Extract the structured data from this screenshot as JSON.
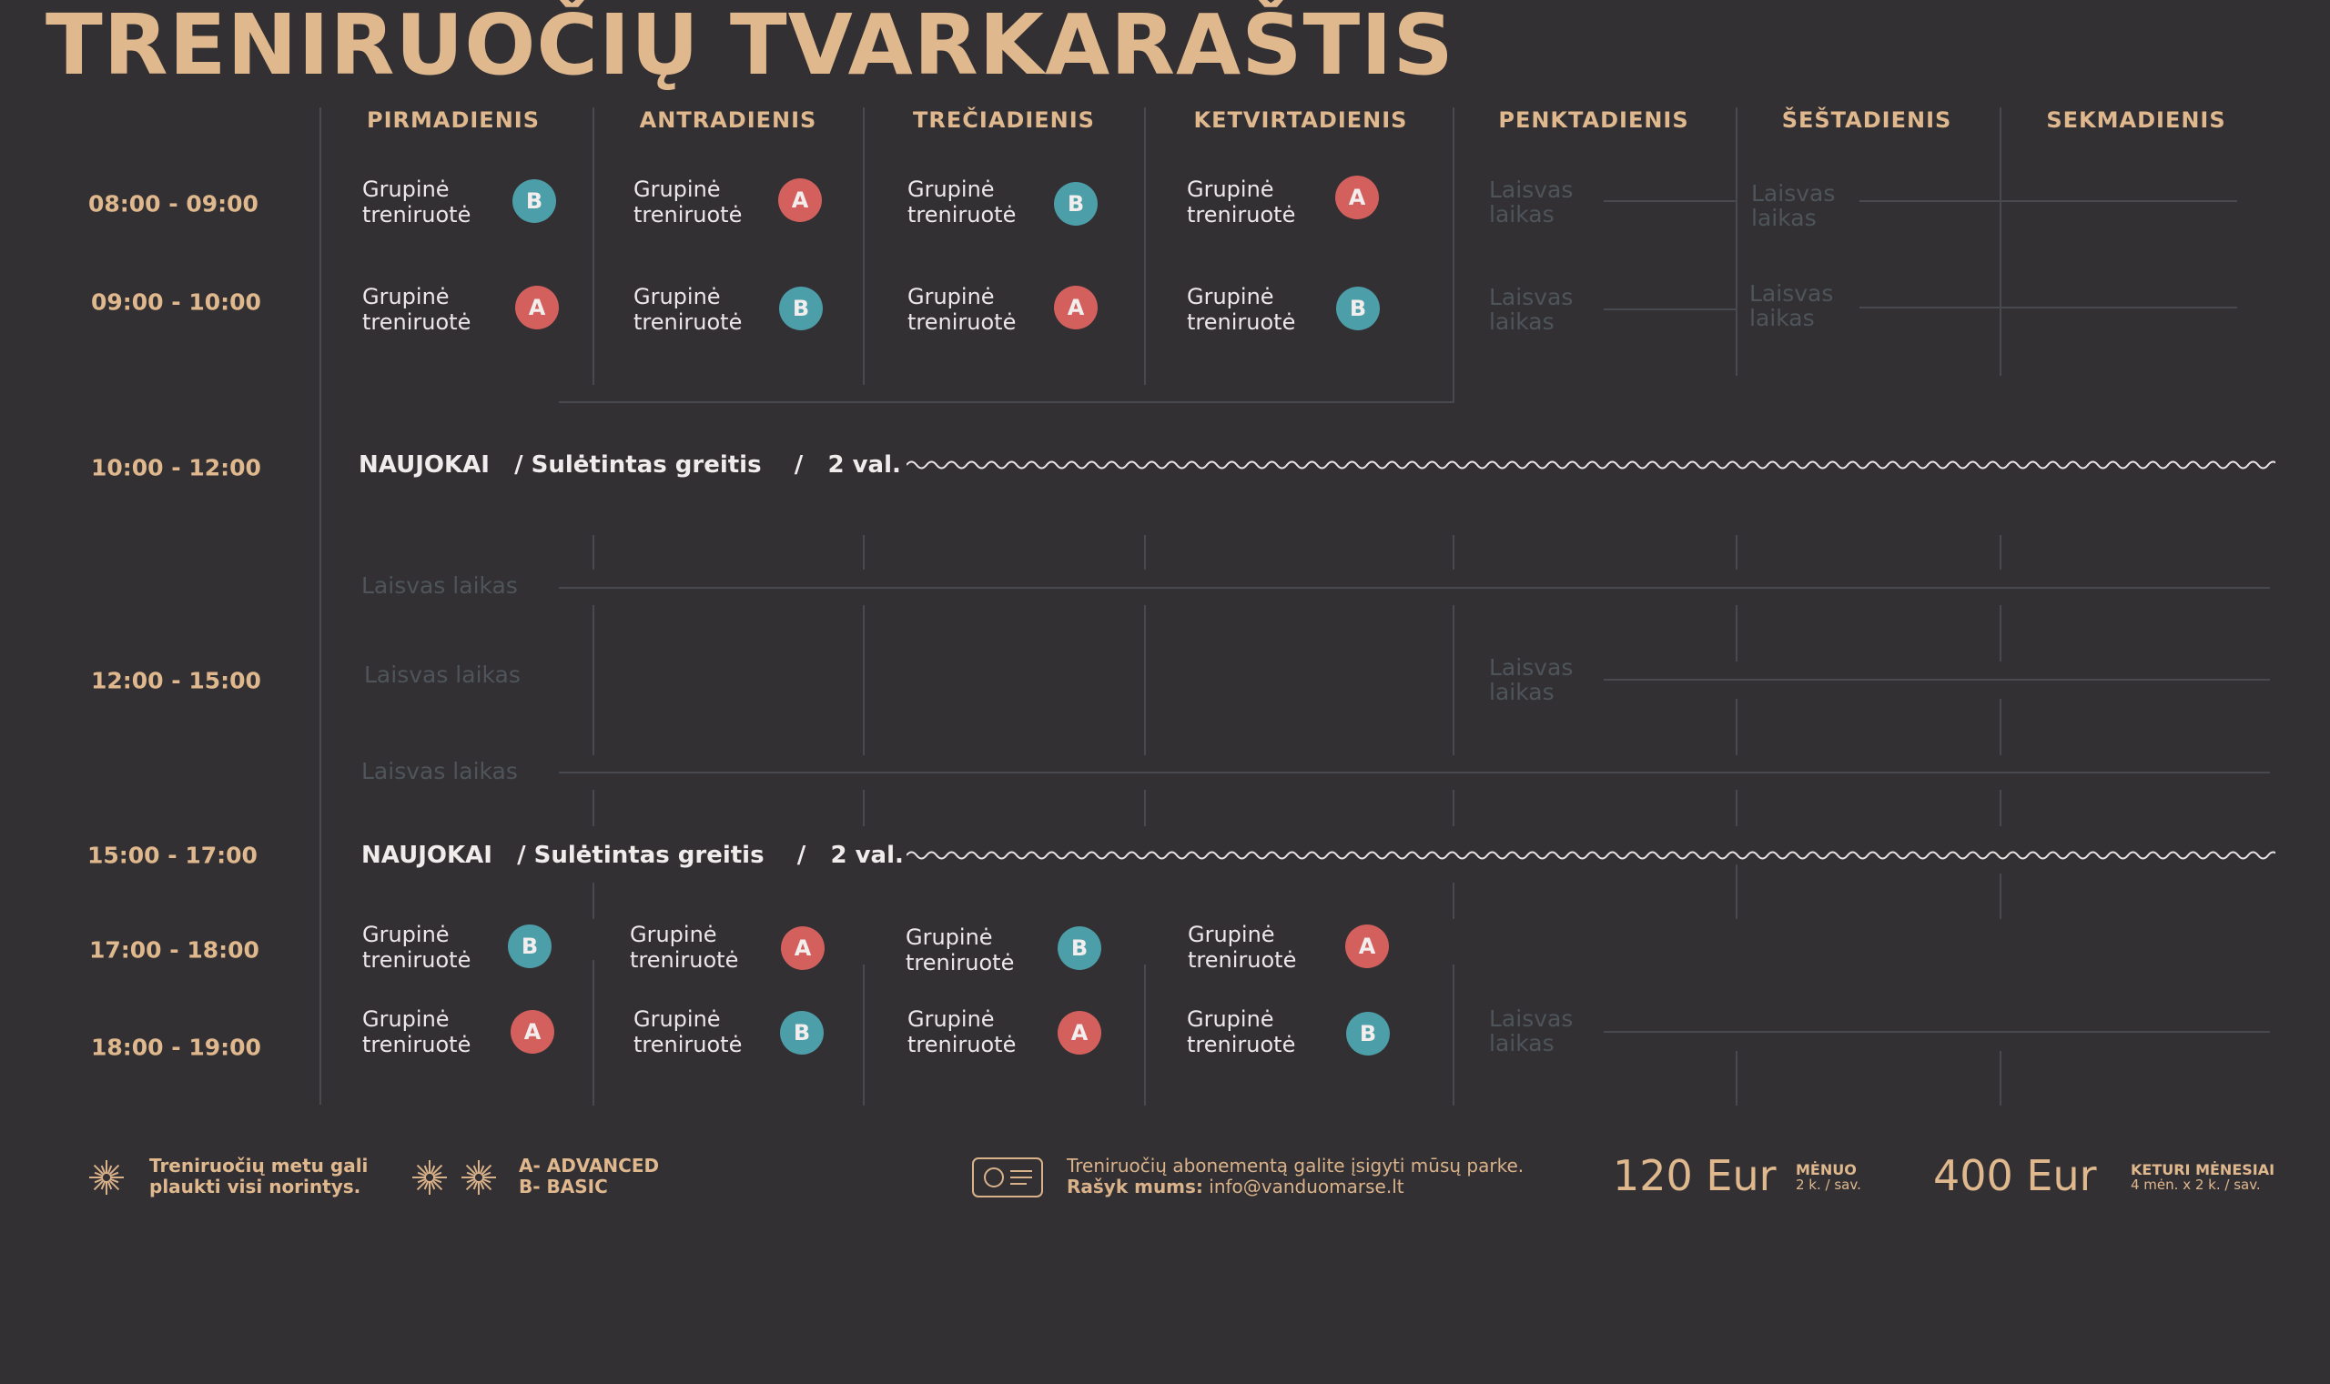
{
  "title": "TRENIRUOČIŲ TVARKARAŠTIS",
  "days": [
    "PIRMADIENIS",
    "ANTRADIENIS",
    "TREČIADIENIS",
    "KETVIRTADIENIS",
    "PENKTADIENIS",
    "ŠEŠTADIENIS",
    "SEKMADIENIS"
  ],
  "times": [
    "08:00 - 09:00",
    "09:00 - 10:00",
    "10:00 - 12:00",
    "12:00 - 15:00",
    "15:00 - 17:00",
    "17:00 - 18:00",
    "18:00 - 19:00"
  ],
  "session": {
    "line1": "Grupinė",
    "line2": "treniruotė"
  },
  "free": {
    "single": "Laisvas laikas",
    "line1": "Laisvas",
    "line2": "laikas"
  },
  "badges": {
    "row1": [
      "B",
      "A",
      "B",
      "A"
    ],
    "row2": [
      "A",
      "B",
      "A",
      "B"
    ],
    "row6": [
      "B",
      "A",
      "B",
      "A"
    ],
    "row7": [
      "A",
      "B",
      "A",
      "B"
    ]
  },
  "beginners": {
    "label": "NAUJOKAI",
    "sep": "/",
    "speed": "Sulėtintas greitis",
    "duration": "2 val."
  },
  "legend": {
    "note_line1": "Treniruočių metu gali",
    "note_line2": "plaukti visi norintys.",
    "advanced": "A- ADVANCED",
    "basic": "B- BASIC"
  },
  "info": {
    "line1": "Treniruočių abonementą galite įsigyti mūsų parke.",
    "contact_label": "Rašyk mums:",
    "email": "info@vanduomarse.lt"
  },
  "prices": [
    {
      "amount": "120 Eur",
      "label": "MĖNUO",
      "sub": "2 k. / sav."
    },
    {
      "amount": "400 Eur",
      "label": "KETURI MĖNESIAI",
      "sub": "4 mėn. x 2 k. / sav."
    }
  ],
  "colors": {
    "accent": "#e0b88e",
    "advanced": "#d4605d",
    "basic": "#4c9ea8",
    "background": "#333034"
  }
}
